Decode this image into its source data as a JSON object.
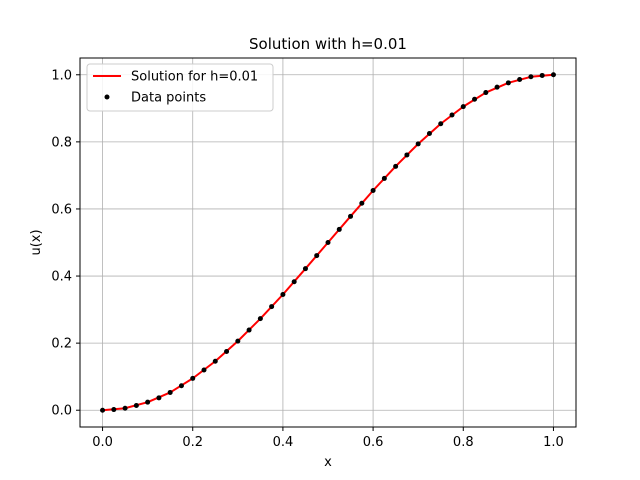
{
  "chart_data": {
    "type": "line",
    "title": "Solution with h=0.01",
    "xlabel": "x",
    "ylabel": "u(x)",
    "xlim": [
      -0.05,
      1.05
    ],
    "ylim": [
      -0.05,
      1.05
    ],
    "xticks": [
      0.0,
      0.2,
      0.4,
      0.6,
      0.8,
      1.0
    ],
    "xtick_labels": [
      "0.0",
      "0.2",
      "0.4",
      "0.6",
      "0.8",
      "1.0"
    ],
    "yticks": [
      0.0,
      0.2,
      0.4,
      0.6,
      0.8,
      1.0
    ],
    "ytick_labels": [
      "0.0",
      "0.2",
      "0.4",
      "0.6",
      "0.8",
      "1.0"
    ],
    "grid": true,
    "legend_position": "upper-left",
    "series": [
      {
        "name": "Solution for h=0.01",
        "kind": "line",
        "color": "#ff0000",
        "x": [
          0.0,
          0.05,
          0.1,
          0.15,
          0.2,
          0.25,
          0.3,
          0.35,
          0.4,
          0.45,
          0.5,
          0.55,
          0.6,
          0.65,
          0.7,
          0.75,
          0.8,
          0.85,
          0.9,
          0.95,
          1.0
        ],
        "y": [
          0.0,
          0.006,
          0.024,
          0.053,
          0.095,
          0.146,
          0.206,
          0.273,
          0.345,
          0.422,
          0.5,
          0.578,
          0.655,
          0.727,
          0.794,
          0.854,
          0.905,
          0.947,
          0.976,
          0.994,
          1.0
        ]
      },
      {
        "name": "Data points",
        "kind": "scatter",
        "color": "#000000",
        "x": [
          0.0,
          0.025,
          0.05,
          0.075,
          0.1,
          0.125,
          0.15,
          0.175,
          0.2,
          0.225,
          0.25,
          0.275,
          0.3,
          0.325,
          0.35,
          0.375,
          0.4,
          0.425,
          0.45,
          0.475,
          0.5,
          0.525,
          0.55,
          0.575,
          0.6,
          0.625,
          0.65,
          0.675,
          0.7,
          0.725,
          0.75,
          0.775,
          0.8,
          0.825,
          0.85,
          0.875,
          0.9,
          0.925,
          0.95,
          0.975,
          1.0
        ],
        "y": [
          0.0,
          0.002,
          0.006,
          0.014,
          0.024,
          0.037,
          0.053,
          0.073,
          0.095,
          0.12,
          0.146,
          0.175,
          0.206,
          0.239,
          0.273,
          0.309,
          0.345,
          0.383,
          0.422,
          0.461,
          0.5,
          0.539,
          0.578,
          0.617,
          0.655,
          0.691,
          0.727,
          0.761,
          0.794,
          0.825,
          0.854,
          0.88,
          0.905,
          0.927,
          0.947,
          0.963,
          0.976,
          0.986,
          0.994,
          0.998,
          1.0
        ]
      }
    ]
  }
}
